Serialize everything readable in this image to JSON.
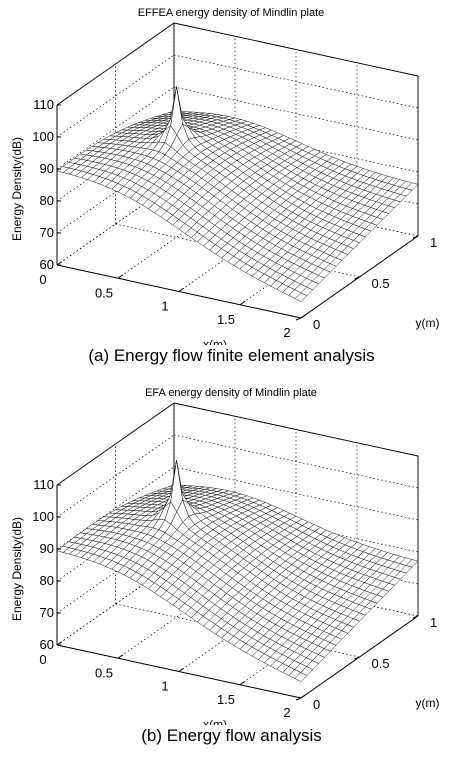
{
  "chart_data": [
    {
      "type": "surface",
      "title": "EFFEA energy density of Mindlin plate",
      "xlabel": "x(m)",
      "ylabel": "y(m)",
      "zlabel": "Energy Density(dB)",
      "xlim": [
        0,
        2
      ],
      "ylim": [
        0,
        1
      ],
      "zlim": [
        60,
        110
      ],
      "xticks": [
        "0",
        "0.5",
        "1",
        "1.5",
        "2"
      ],
      "yticks": [
        "0",
        "0.5",
        "1"
      ],
      "zticks": [
        "60",
        "70",
        "80",
        "90",
        "100",
        "110"
      ],
      "grid": true,
      "caption": "(a) Energy flow finite element analysis",
      "source_point": {
        "x": 0.5,
        "y": 0.5,
        "z": 107
      },
      "corner_values": {
        "x0_y0": 85,
        "x0_y1": 78,
        "x2_y0": 65,
        "x2_y1": 76
      }
    },
    {
      "type": "surface",
      "title": "EFA energy density of Mindlin plate",
      "xlabel": "x(m)",
      "ylabel": "y(m)",
      "zlabel": "Energy Density(dB)",
      "xlim": [
        0,
        2
      ],
      "ylim": [
        0,
        1
      ],
      "zlim": [
        60,
        110
      ],
      "xticks": [
        "0",
        "0.5",
        "1",
        "1.5",
        "2"
      ],
      "yticks": [
        "0",
        "0.5",
        "1"
      ],
      "zticks": [
        "60",
        "70",
        "80",
        "90",
        "100",
        "110"
      ],
      "grid": true,
      "caption": "(b) Energy flow analysis",
      "source_point": {
        "x": 0.5,
        "y": 0.5,
        "z": 109
      },
      "corner_values": {
        "x0_y0": 85,
        "x0_y1": 80,
        "x2_y0": 65,
        "x2_y1": 77
      }
    }
  ]
}
